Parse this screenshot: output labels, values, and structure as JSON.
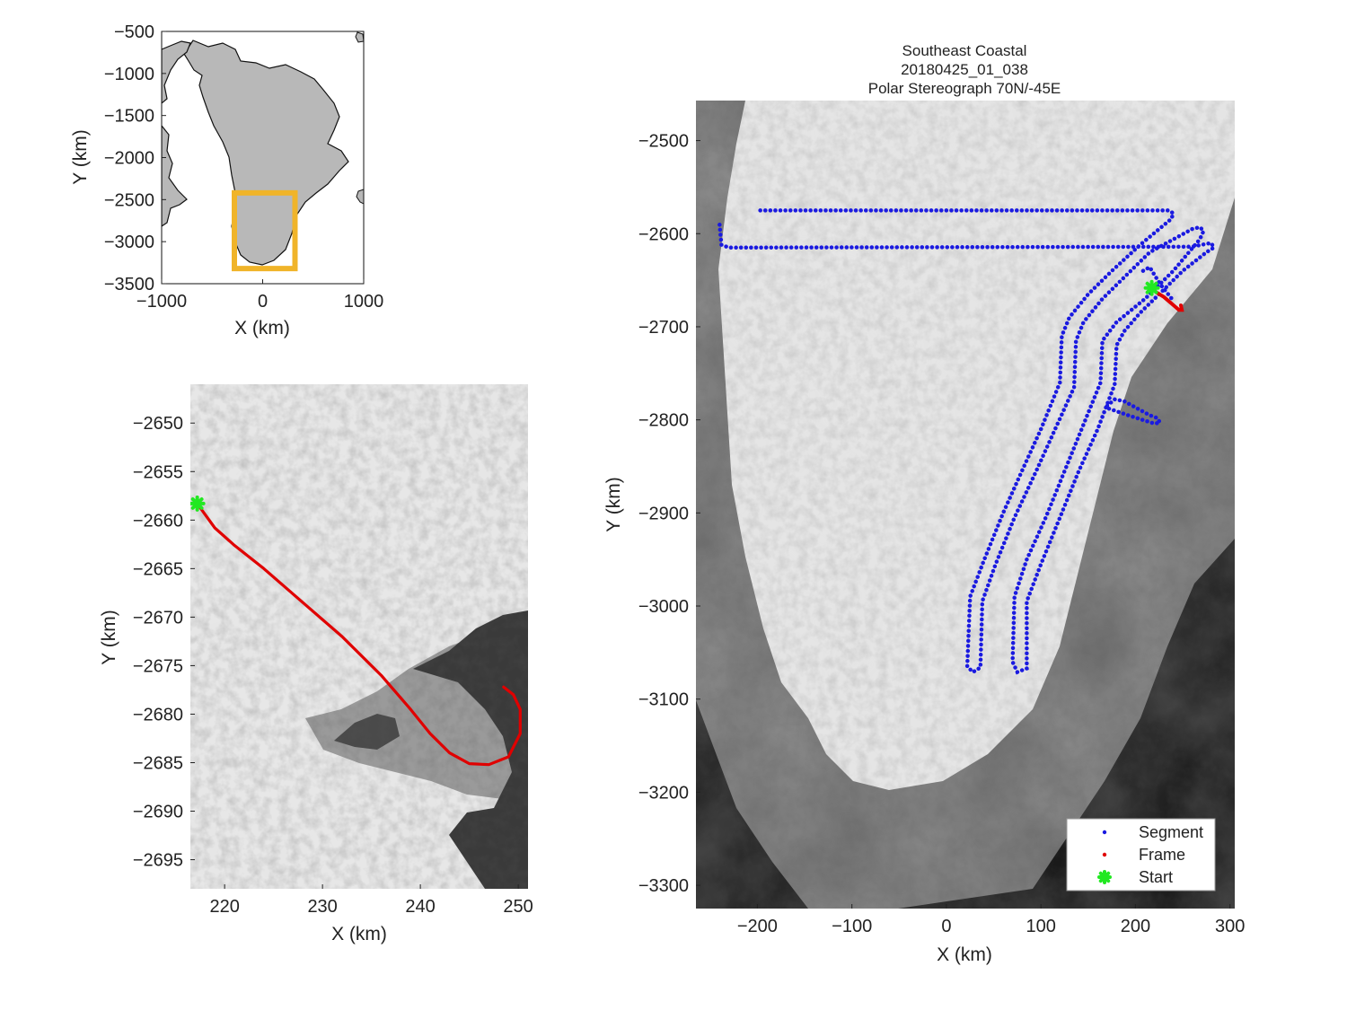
{
  "figure": {
    "title_lines": [
      "Southeast Coastal",
      "20180425_01_038",
      "Polar Stereograph 70N/-45E"
    ]
  },
  "chart_data": [
    {
      "id": "overview",
      "type": "map",
      "xlabel": "X (km)",
      "ylabel": "Y (km)",
      "xlim": [
        -1000,
        1000
      ],
      "ylim": [
        -3500,
        -500
      ],
      "xticks": [
        -1000,
        0,
        1000
      ],
      "yticks": [
        -500,
        -1000,
        -1500,
        -2000,
        -2500,
        -3000,
        -3500
      ],
      "extent_box": {
        "x": [
          -280,
          320
        ],
        "y": [
          -3320,
          -2420
        ],
        "color": "#f0b429"
      },
      "land_color": "#b8b8b8"
    },
    {
      "id": "frame_zoom",
      "type": "map",
      "xlabel": "X (km)",
      "ylabel": "Y (km)",
      "xlim": [
        216.5,
        251
      ],
      "ylim": [
        -2698,
        -2646
      ],
      "xticks": [
        220,
        230,
        240,
        250
      ],
      "yticks": [
        -2650,
        -2655,
        -2660,
        -2665,
        -2670,
        -2675,
        -2680,
        -2685,
        -2690,
        -2695
      ],
      "frame_path": [
        [
          217.2,
          -2658.3
        ],
        [
          219,
          -2660.8
        ],
        [
          221,
          -2662.6
        ],
        [
          224,
          -2665
        ],
        [
          228,
          -2668.5
        ],
        [
          232,
          -2672
        ],
        [
          236,
          -2676
        ],
        [
          239,
          -2679.5
        ],
        [
          241,
          -2682
        ],
        [
          243,
          -2684
        ],
        [
          245,
          -2685.1
        ],
        [
          247,
          -2685.2
        ],
        [
          249,
          -2684.4
        ],
        [
          250.2,
          -2682
        ],
        [
          250.2,
          -2679.5
        ],
        [
          249.5,
          -2678
        ],
        [
          248.5,
          -2677.2
        ]
      ],
      "start": [
        217.2,
        -2658.3
      ],
      "frame_color": "#e00000",
      "start_color": "#22e822"
    },
    {
      "id": "segment_map",
      "type": "map",
      "xlabel": "X (km)",
      "ylabel": "Y (km)",
      "xlim": [
        -265,
        305
      ],
      "ylim": [
        -3325,
        -2457
      ],
      "xticks": [
        -200,
        -100,
        0,
        100,
        200,
        300
      ],
      "yticks": [
        -2500,
        -2600,
        -2700,
        -2800,
        -2900,
        -3000,
        -3100,
        -3200,
        -3300
      ],
      "segment_path": [
        [
          -197,
          -2575
        ],
        [
          235,
          -2575
        ],
        [
          240,
          -2578
        ],
        [
          238,
          -2584
        ],
        [
          205,
          -2612
        ],
        [
          175,
          -2640
        ],
        [
          150,
          -2665
        ],
        [
          130,
          -2690
        ],
        [
          122,
          -2710
        ],
        [
          120,
          -2760
        ],
        [
          100,
          -2810
        ],
        [
          82,
          -2850
        ],
        [
          60,
          -2900
        ],
        [
          40,
          -2950
        ],
        [
          25,
          -2990
        ],
        [
          22,
          -3065
        ],
        [
          28,
          -3071
        ],
        [
          36,
          -3066
        ],
        [
          38,
          -2995
        ],
        [
          52,
          -2955
        ],
        [
          72,
          -2905
        ],
        [
          95,
          -2855
        ],
        [
          115,
          -2810
        ],
        [
          135,
          -2765
        ],
        [
          137,
          -2715
        ],
        [
          145,
          -2695
        ],
        [
          165,
          -2670
        ],
        [
          190,
          -2645
        ],
        [
          215,
          -2620
        ],
        [
          260,
          -2595
        ],
        [
          268,
          -2593
        ],
        [
          272,
          -2597
        ],
        [
          268,
          -2606
        ],
        [
          240,
          -2640
        ],
        [
          210,
          -2670
        ],
        [
          180,
          -2695
        ],
        [
          165,
          -2715
        ],
        [
          163,
          -2760
        ],
        [
          145,
          -2805
        ],
        [
          125,
          -2855
        ],
        [
          105,
          -2905
        ],
        [
          85,
          -2950
        ],
        [
          72,
          -2990
        ],
        [
          70,
          -3060
        ],
        [
          75,
          -3071
        ],
        [
          85,
          -3067
        ],
        [
          85,
          -2995
        ],
        [
          100,
          -2955
        ],
        [
          120,
          -2905
        ],
        [
          140,
          -2855
        ],
        [
          160,
          -2810
        ],
        [
          178,
          -2762
        ],
        [
          180,
          -2720
        ],
        [
          188,
          -2705
        ],
        [
          205,
          -2685
        ],
        [
          230,
          -2660
        ],
        [
          250,
          -2640
        ],
        [
          275,
          -2620
        ],
        [
          283,
          -2615
        ],
        [
          280,
          -2610
        ],
        [
          260,
          -2614
        ],
        [
          -230,
          -2615
        ],
        [
          -238,
          -2612
        ],
        [
          -240,
          -2590
        ]
      ],
      "segment_branch": [
        [
          208,
          -2640
        ],
        [
          215,
          -2636
        ],
        [
          226,
          -2654
        ],
        [
          240,
          -2672
        ]
      ],
      "segment_inlet": [
        [
          170,
          -2785
        ],
        [
          178,
          -2778
        ],
        [
          188,
          -2780
        ],
        [
          215,
          -2795
        ],
        [
          223,
          -2798
        ],
        [
          226,
          -2803
        ],
        [
          220,
          -2804
        ],
        [
          195,
          -2796
        ],
        [
          172,
          -2788
        ]
      ],
      "frame_path": [
        [
          217,
          -2658
        ],
        [
          222,
          -2663
        ],
        [
          230,
          -2668
        ],
        [
          238,
          -2675
        ],
        [
          246,
          -2682
        ],
        [
          249,
          -2682
        ],
        [
          248,
          -2677
        ]
      ],
      "start": [
        217.2,
        -2658.3
      ],
      "segment_color": "#1a1ae0",
      "frame_color": "#e00000",
      "start_color": "#22e822",
      "legend": {
        "position": "bottom-right",
        "entries": [
          {
            "label": "Segment",
            "color": "#1a1ae0"
          },
          {
            "label": "Frame",
            "color": "#e00000"
          },
          {
            "label": "Start",
            "color": "#22e822"
          }
        ]
      }
    }
  ]
}
